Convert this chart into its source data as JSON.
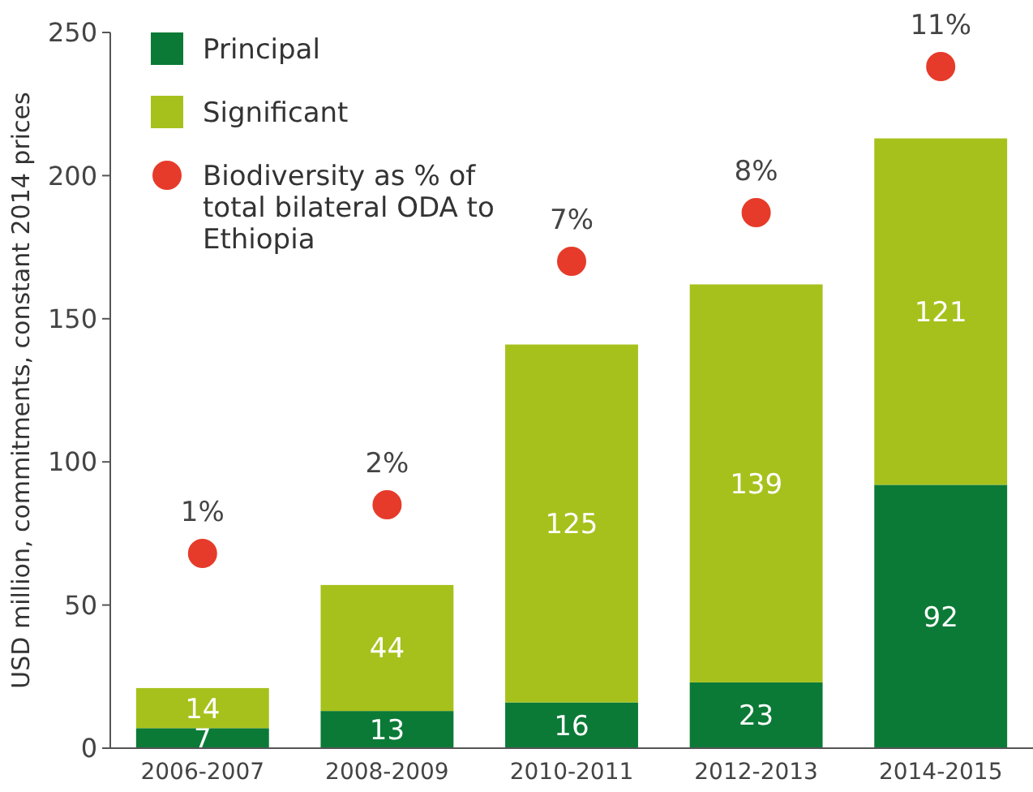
{
  "chart_data": {
    "type": "bar",
    "stacked": true,
    "ylabel": "USD million, commitments, constant 2014 prices",
    "categories": [
      "2006-2007",
      "2008-2009",
      "2010-2011",
      "2012-2013",
      "2014-2015"
    ],
    "series": [
      {
        "name": "Principal",
        "color": "#0b7a36",
        "values": [
          7,
          13,
          16,
          23,
          92
        ]
      },
      {
        "name": "Significant",
        "color": "#a7c11c",
        "values": [
          14,
          44,
          125,
          139,
          121
        ]
      },
      {
        "name": "Biodiversity as % of total bilateral ODA to Ethiopia",
        "type": "scatter",
        "axis": "y2",
        "color": "#e63b2a",
        "values": [
          1,
          2,
          7,
          8,
          11
        ],
        "value_labels": [
          "1%",
          "2%",
          "7%",
          "8%",
          "11%"
        ]
      }
    ],
    "ylim": [
      0,
      250
    ],
    "yticks": [
      0,
      50,
      100,
      150,
      200,
      250
    ],
    "y2lim": [
      -3,
      11.7
    ],
    "data_labels": true,
    "legend": "top left",
    "marker": "circle",
    "grid": false
  }
}
